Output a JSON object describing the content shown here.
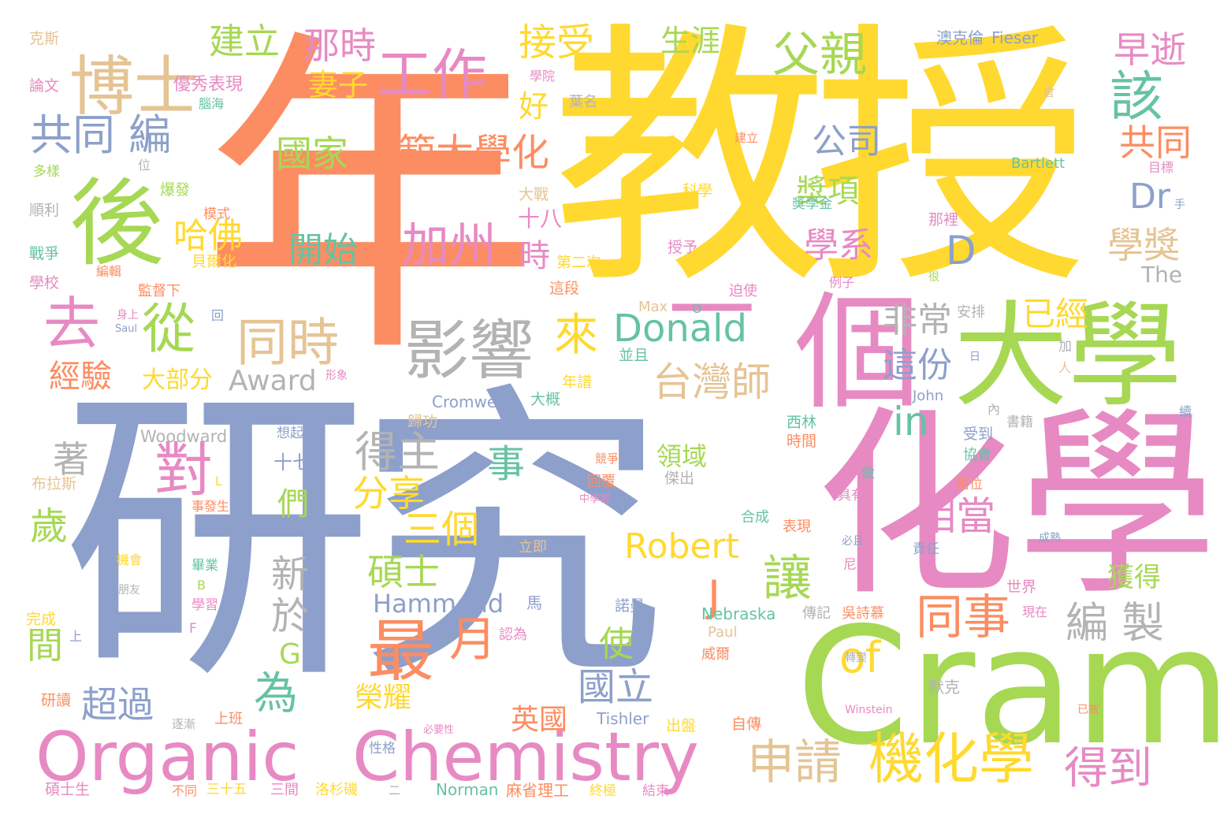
{
  "palette": {
    "orange": "#fc8d62",
    "blue": "#8da0cb",
    "pink": "#e78ac3",
    "green": "#a6d854",
    "yellow": "#ffd92f",
    "tan": "#e5c494",
    "gray": "#b3b3b3",
    "teal": "#66c2a5"
  },
  "words": [
    {
      "text": "研究",
      "color": "blue"
    },
    {
      "text": "年",
      "color": "orange"
    },
    {
      "text": "教授",
      "color": "yellow"
    },
    {
      "text": "化學",
      "color": "pink"
    },
    {
      "text": "Cram",
      "color": "green"
    },
    {
      "text": "大學",
      "color": "green"
    },
    {
      "text": "個",
      "color": "pink"
    },
    {
      "text": "一",
      "color": "pink"
    },
    {
      "text": "後",
      "color": "green"
    },
    {
      "text": "博士",
      "color": "tan"
    },
    {
      "text": "Organic",
      "color": "pink"
    },
    {
      "text": "Chemistry",
      "color": "pink"
    },
    {
      "text": "影響",
      "color": "gray"
    },
    {
      "text": "工作",
      "color": "pink"
    },
    {
      "text": "父親",
      "color": "green"
    },
    {
      "text": "機化學",
      "color": "yellow"
    },
    {
      "text": "最",
      "color": "orange"
    },
    {
      "text": "去",
      "color": "pink"
    },
    {
      "text": "從",
      "color": "green"
    },
    {
      "text": "同時",
      "color": "tan"
    },
    {
      "text": "加州",
      "color": "pink"
    },
    {
      "text": "月",
      "color": "orange"
    },
    {
      "text": "同事",
      "color": "orange"
    },
    {
      "text": "申請",
      "color": "tan"
    },
    {
      "text": "得到",
      "color": "pink"
    },
    {
      "text": "編 製",
      "color": "gray"
    },
    {
      "text": "共同 編",
      "color": "blue"
    },
    {
      "text": "建立",
      "color": "green"
    },
    {
      "text": "那時",
      "color": "pink"
    },
    {
      "text": "接受",
      "color": "yellow"
    },
    {
      "text": "早逝",
      "color": "pink"
    },
    {
      "text": "該",
      "color": "teal"
    },
    {
      "text": "國家",
      "color": "green"
    },
    {
      "text": "範大學化",
      "color": "orange"
    },
    {
      "text": "公司",
      "color": "blue"
    },
    {
      "text": "共同",
      "color": "orange"
    },
    {
      "text": "Dr",
      "color": "blue"
    },
    {
      "text": "D",
      "color": "blue"
    },
    {
      "text": "學系",
      "color": "pink"
    },
    {
      "text": "學獎",
      "color": "tan"
    },
    {
      "text": "哈佛",
      "color": "yellow"
    },
    {
      "text": "開始",
      "color": "teal"
    },
    {
      "text": "台灣師",
      "color": "tan"
    },
    {
      "text": "Donald",
      "color": "teal"
    },
    {
      "text": "來",
      "color": "yellow"
    },
    {
      "text": "in",
      "color": "teal"
    },
    {
      "text": "非常",
      "color": "gray"
    },
    {
      "text": "這份",
      "color": "blue"
    },
    {
      "text": "已經",
      "color": "yellow"
    },
    {
      "text": "經驗",
      "color": "orange"
    },
    {
      "text": "大部分",
      "color": "yellow"
    },
    {
      "text": "Award",
      "color": "gray"
    },
    {
      "text": "對",
      "color": "pink"
    },
    {
      "text": "得主",
      "color": "gray"
    },
    {
      "text": "分享",
      "color": "yellow"
    },
    {
      "text": "三個",
      "color": "yellow"
    },
    {
      "text": "事",
      "color": "teal"
    },
    {
      "text": "相當",
      "color": "pink"
    },
    {
      "text": "讓",
      "color": "green"
    },
    {
      "text": "Robert",
      "color": "yellow"
    },
    {
      "text": "新",
      "color": "gray"
    },
    {
      "text": "於",
      "color": "gray"
    },
    {
      "text": "碩士",
      "color": "green"
    },
    {
      "text": "Hammond",
      "color": "blue"
    },
    {
      "text": "歲",
      "color": "green"
    },
    {
      "text": "們",
      "color": "green"
    },
    {
      "text": "著",
      "color": "gray"
    },
    {
      "text": "國立",
      "color": "blue"
    },
    {
      "text": "使",
      "color": "green"
    },
    {
      "text": "超過",
      "color": "blue"
    },
    {
      "text": "為",
      "color": "teal"
    },
    {
      "text": "of",
      "color": "yellow"
    },
    {
      "text": "榮耀",
      "color": "yellow"
    },
    {
      "text": "英國",
      "color": "orange"
    },
    {
      "text": "獲得",
      "color": "green"
    },
    {
      "text": "J",
      "color": "orange"
    },
    {
      "text": "G",
      "color": "green"
    },
    {
      "text": "間",
      "color": "green"
    },
    {
      "text": "妻子",
      "color": "yellow"
    },
    {
      "text": "好",
      "color": "yellow"
    },
    {
      "text": "時",
      "color": "pink"
    },
    {
      "text": "生涯",
      "color": "green"
    },
    {
      "text": "獎項",
      "color": "green"
    },
    {
      "text": "The",
      "color": "gray"
    },
    {
      "text": "領域",
      "color": "green"
    },
    {
      "text": "十七",
      "color": "blue"
    },
    {
      "text": "十八",
      "color": "pink"
    },
    {
      "text": "Cromwell",
      "color": "blue"
    },
    {
      "text": "Woodward",
      "color": "gray"
    },
    {
      "text": "Tishler",
      "color": "blue"
    },
    {
      "text": "Nebraska",
      "color": "teal"
    },
    {
      "text": "Norman",
      "color": "teal"
    },
    {
      "text": "麻省理工",
      "color": "orange"
    },
    {
      "text": "Bartlett",
      "color": "teal"
    },
    {
      "text": "Fieser",
      "color": "blue"
    },
    {
      "text": "澳克倫",
      "color": "blue"
    },
    {
      "text": "John",
      "color": "blue"
    },
    {
      "text": "Max",
      "color": "tan"
    },
    {
      "text": "Paul",
      "color": "tan"
    },
    {
      "text": "Saul",
      "color": "blue"
    },
    {
      "text": "Winstein",
      "color": "pink"
    },
    {
      "text": "克斯",
      "color": "tan"
    },
    {
      "text": "論文",
      "color": "pink"
    },
    {
      "text": "優秀表現",
      "color": "pink"
    },
    {
      "text": "腦海",
      "color": "teal"
    },
    {
      "text": "學院",
      "color": "pink"
    },
    {
      "text": "葉名",
      "color": "gray"
    },
    {
      "text": "倉",
      "color": "tan"
    },
    {
      "text": "多樣",
      "color": "green"
    },
    {
      "text": "位",
      "color": "gray"
    },
    {
      "text": "爆發",
      "color": "green"
    },
    {
      "text": "順利",
      "color": "gray"
    },
    {
      "text": "戰爭",
      "color": "teal"
    },
    {
      "text": "學校",
      "color": "pink"
    },
    {
      "text": "編輯",
      "color": "orange"
    },
    {
      "text": "監督下",
      "color": "orange"
    },
    {
      "text": "身上",
      "color": "pink"
    },
    {
      "text": "回",
      "color": "blue"
    },
    {
      "text": "模式",
      "color": "orange"
    },
    {
      "text": "貝爾化",
      "color": "yellow"
    },
    {
      "text": "大戰",
      "color": "tan"
    },
    {
      "text": "第二次",
      "color": "yellow"
    },
    {
      "text": "這段",
      "color": "orange"
    },
    {
      "text": "科學",
      "color": "yellow"
    },
    {
      "text": "授予",
      "color": "pink"
    },
    {
      "text": "獎學金",
      "color": "teal"
    },
    {
      "text": "那裡",
      "color": "pink"
    },
    {
      "text": "迫使",
      "color": "pink"
    },
    {
      "text": "例子",
      "color": "pink"
    },
    {
      "text": "建立",
      "color": "orange"
    },
    {
      "text": "目標",
      "color": "pink"
    },
    {
      "text": "手",
      "color": "blue"
    },
    {
      "text": "很",
      "color": "green"
    },
    {
      "text": "安排",
      "color": "gray"
    },
    {
      "text": "並且",
      "color": "teal"
    },
    {
      "text": "加",
      "color": "gray"
    },
    {
      "text": "人",
      "color": "tan"
    },
    {
      "text": "日",
      "color": "blue"
    },
    {
      "text": "年譜",
      "color": "yellow"
    },
    {
      "text": "大概",
      "color": "teal"
    },
    {
      "text": "形象",
      "color": "pink"
    },
    {
      "text": "歸功",
      "color": "tan"
    },
    {
      "text": "想起",
      "color": "blue"
    },
    {
      "text": "西林",
      "color": "teal"
    },
    {
      "text": "時間",
      "color": "orange"
    },
    {
      "text": "內",
      "color": "gray"
    },
    {
      "text": "書籍",
      "color": "gray"
    },
    {
      "text": "續",
      "color": "blue"
    },
    {
      "text": "受到",
      "color": "blue"
    },
    {
      "text": "協會",
      "color": "teal"
    },
    {
      "text": "布拉斯",
      "color": "tan"
    },
    {
      "text": "L",
      "color": "yellow"
    },
    {
      "text": "事發生",
      "color": "orange"
    },
    {
      "text": "競爭",
      "color": "orange"
    },
    {
      "text": "傑出",
      "color": "gray"
    },
    {
      "text": "回覆",
      "color": "orange"
    },
    {
      "text": "中學習",
      "color": "pink"
    },
    {
      "text": "做",
      "color": "teal"
    },
    {
      "text": "兩位",
      "color": "orange"
    },
    {
      "text": "具有",
      "color": "pink"
    },
    {
      "text": "合成",
      "color": "teal"
    },
    {
      "text": "表現",
      "color": "orange"
    },
    {
      "text": "必且",
      "color": "blue"
    },
    {
      "text": "成熟",
      "color": "blue"
    },
    {
      "text": "立即",
      "color": "tan"
    },
    {
      "text": "責任",
      "color": "blue"
    },
    {
      "text": "尼",
      "color": "pink"
    },
    {
      "text": "機會",
      "color": "yellow"
    },
    {
      "text": "畢業",
      "color": "teal"
    },
    {
      "text": "B",
      "color": "green"
    },
    {
      "text": "朋友",
      "color": "gray"
    },
    {
      "text": "學習",
      "color": "pink"
    },
    {
      "text": "完成",
      "color": "yellow"
    },
    {
      "text": "上",
      "color": "blue"
    },
    {
      "text": "F",
      "color": "pink"
    },
    {
      "text": "馬",
      "color": "blue"
    },
    {
      "text": "認為",
      "color": "pink"
    },
    {
      "text": "諾曼",
      "color": "blue"
    },
    {
      "text": "世界",
      "color": "pink"
    },
    {
      "text": "現在",
      "color": "pink"
    },
    {
      "text": "傳記",
      "color": "gray"
    },
    {
      "text": "吳詩慕",
      "color": "orange"
    },
    {
      "text": "威爾",
      "color": "orange"
    },
    {
      "text": "轉變",
      "color": "gray"
    },
    {
      "text": "默克",
      "color": "gray"
    },
    {
      "text": "研讀",
      "color": "orange"
    },
    {
      "text": "逐漸",
      "color": "gray"
    },
    {
      "text": "上班",
      "color": "orange"
    },
    {
      "text": "出盤",
      "color": "yellow"
    },
    {
      "text": "自傳",
      "color": "orange"
    },
    {
      "text": "必要性",
      "color": "pink"
    },
    {
      "text": "性格",
      "color": "blue"
    },
    {
      "text": "已故",
      "color": "orange"
    },
    {
      "text": "碩士生",
      "color": "pink"
    },
    {
      "text": "不同",
      "color": "orange"
    },
    {
      "text": "三十五",
      "color": "yellow"
    },
    {
      "text": "三間",
      "color": "pink"
    },
    {
      "text": "洛杉磯",
      "color": "yellow"
    },
    {
      "text": "二",
      "color": "gray"
    },
    {
      "text": "終極",
      "color": "yellow"
    },
    {
      "text": "結束",
      "color": "pink"
    },
    {
      "text": "O",
      "color": "teal"
    }
  ]
}
